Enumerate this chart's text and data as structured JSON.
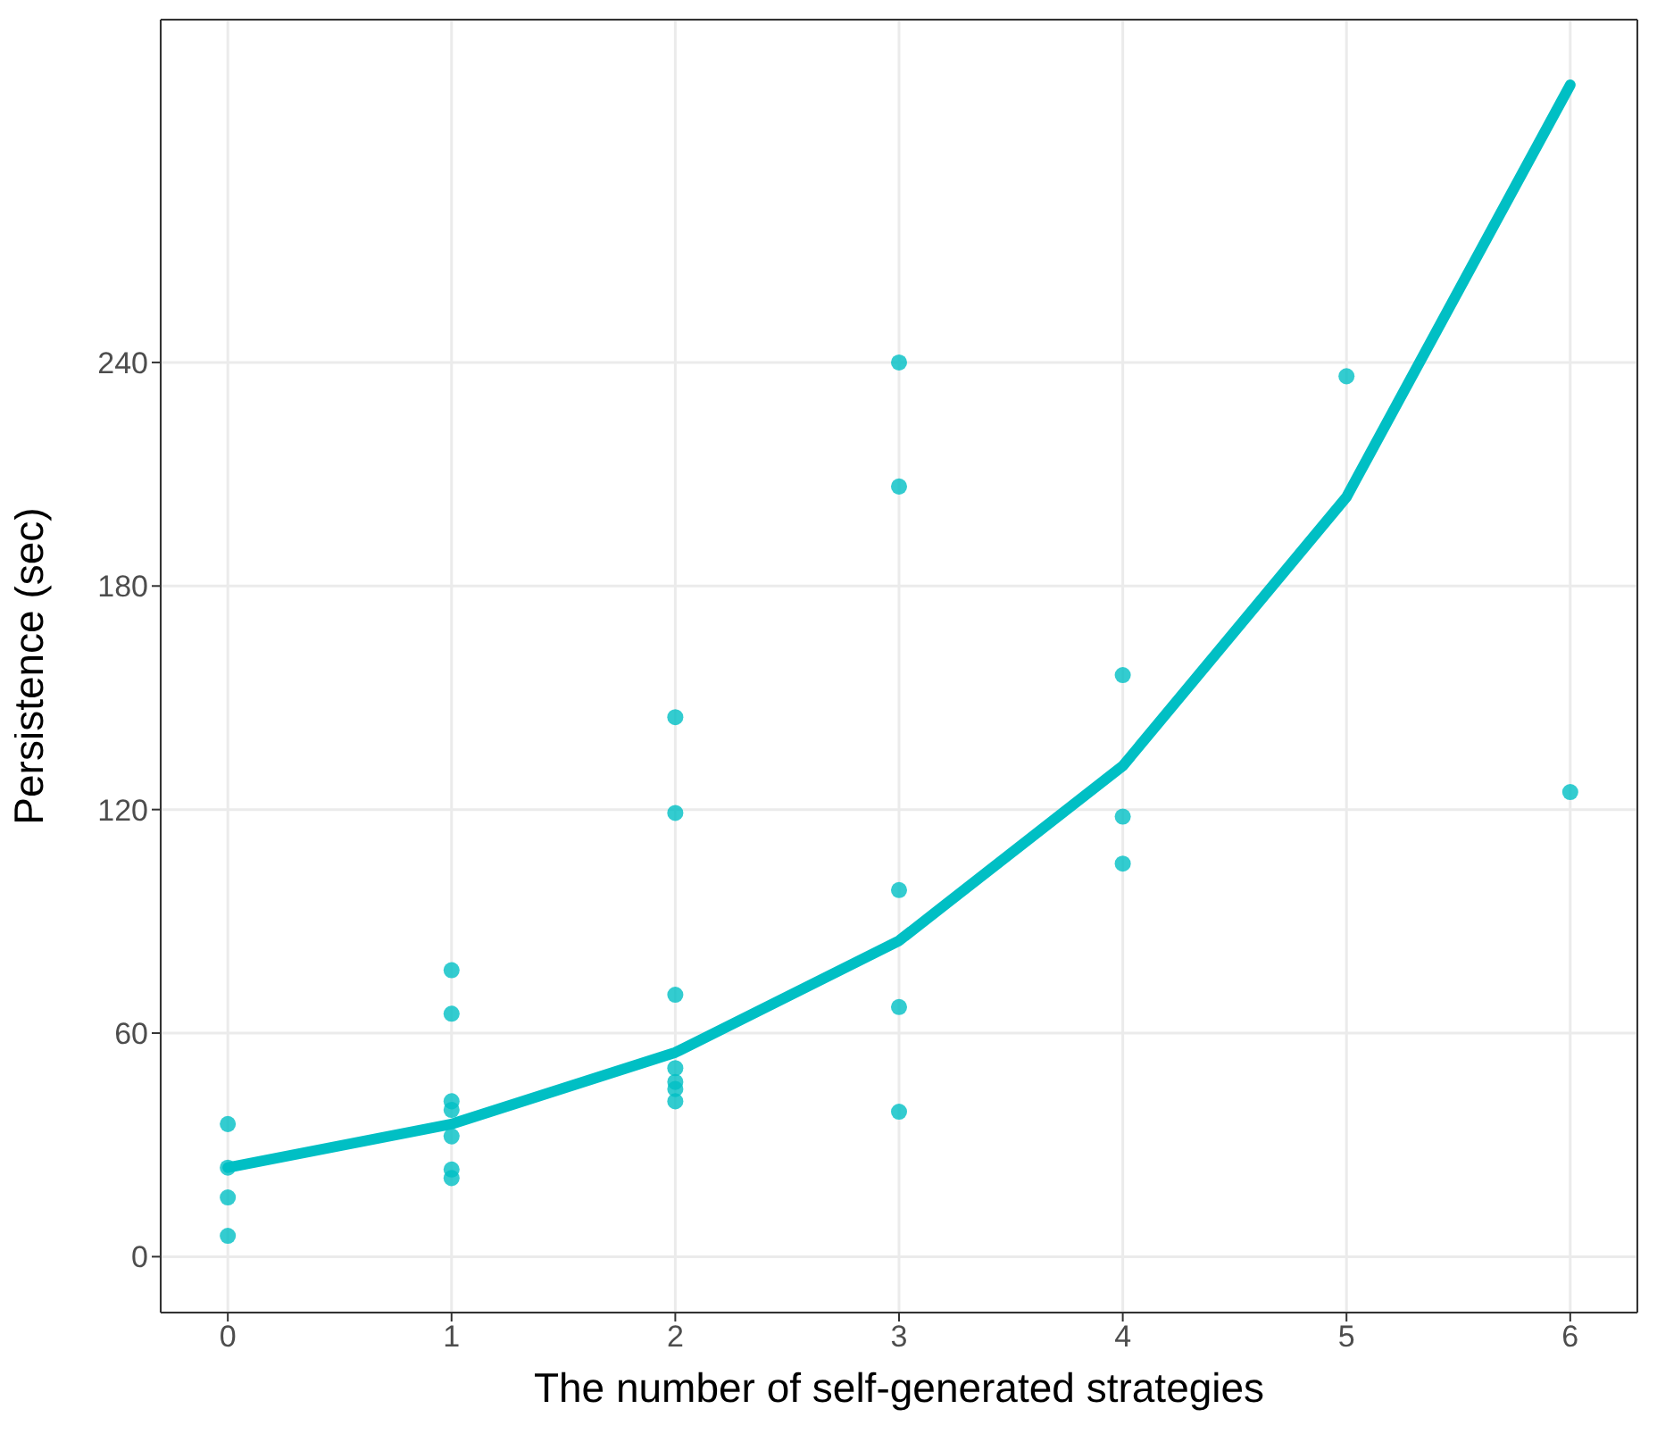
{
  "chart_data": {
    "type": "scatter",
    "xlabel": "The number of self-generated strategies",
    "ylabel": "Persistence (sec)",
    "xlim": [
      -0.3,
      6.3
    ],
    "xticks": [
      0,
      1,
      2,
      3,
      4,
      5,
      6
    ],
    "ylim": [
      -15,
      332
    ],
    "yticks": [
      0,
      60,
      120,
      180,
      240
    ],
    "grid": true,
    "series": [
      {
        "color": "#00bfc4",
        "marker": "circle",
        "x": [
          0,
          0,
          0,
          0,
          1,
          1,
          1,
          1,
          1,
          1,
          1,
          2,
          2,
          2,
          2,
          2,
          2,
          2,
          3,
          3,
          3,
          3,
          3,
          4,
          4,
          4,
          5,
          6
        ],
        "values": [
          35.6,
          23.9,
          15.9,
          5.6,
          76.9,
          65.2,
          41.7,
          39.4,
          32.3,
          23.4,
          21.1,
          144.8,
          119.1,
          70.3,
          50.6,
          46.9,
          45,
          41.7,
          240,
          206.7,
          98.4,
          67,
          38.9,
          156.1,
          118.1,
          105.5,
          236.3,
          124.7
        ]
      },
      {
        "type": "line",
        "color": "#00bfc4",
        "marker": "none",
        "line_style": "solid",
        "x": [
          0,
          1,
          2,
          3,
          4,
          5,
          6
        ],
        "values": [
          23.9,
          35.6,
          54.8,
          84.8,
          131.7,
          203.9,
          314.5
        ]
      }
    ]
  }
}
